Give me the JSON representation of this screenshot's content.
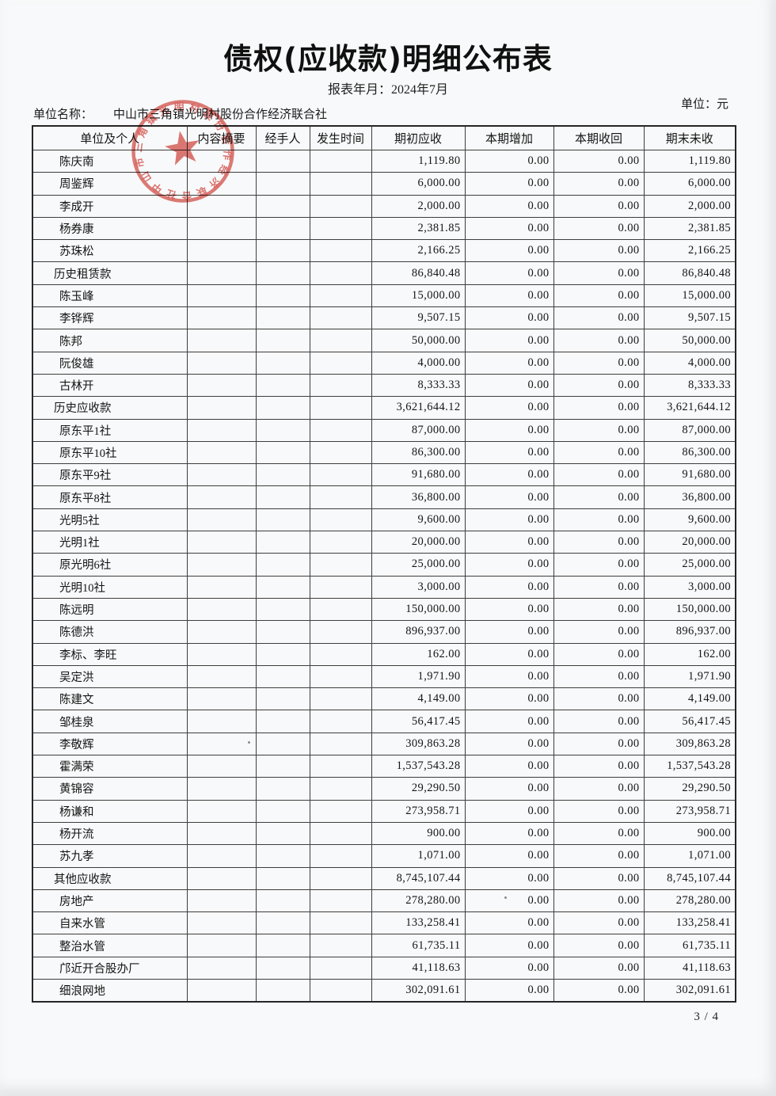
{
  "page": {
    "title": "债权(应收款)明细公布表",
    "report_period": "报表年月：2024年7月",
    "unit_name_label": "单位名称：",
    "unit_name_value": "中山市三角镇光明村股份合作经济联合社",
    "unit_label": "单位：元",
    "page_number": "3 / 4"
  },
  "stamp": {
    "text": "中山市三角镇光明村股份合作经济联合社",
    "shape": "round-seal-with-star",
    "color": "#d5443c"
  },
  "table": {
    "headers": [
      "单位及个人",
      "内容摘要",
      "经手人",
      "发生时间",
      "期初应收",
      "本期增加",
      "本期收回",
      "期末未收"
    ],
    "rows": [
      {
        "name": "陈庆南",
        "category": false,
        "opening": "1,119.80",
        "increase": "0.00",
        "received": "0.00",
        "closing": "1,119.80"
      },
      {
        "name": "周鉴辉",
        "category": false,
        "opening": "6,000.00",
        "increase": "0.00",
        "received": "0.00",
        "closing": "6,000.00"
      },
      {
        "name": "李成开",
        "category": false,
        "opening": "2,000.00",
        "increase": "0.00",
        "received": "0.00",
        "closing": "2,000.00"
      },
      {
        "name": "杨券康",
        "category": false,
        "opening": "2,381.85",
        "increase": "0.00",
        "received": "0.00",
        "closing": "2,381.85"
      },
      {
        "name": "苏珠松",
        "category": false,
        "opening": "2,166.25",
        "increase": "0.00",
        "received": "0.00",
        "closing": "2,166.25"
      },
      {
        "name": "历史租赁款",
        "category": true,
        "opening": "86,840.48",
        "increase": "0.00",
        "received": "0.00",
        "closing": "86,840.48"
      },
      {
        "name": "陈玉峰",
        "category": false,
        "opening": "15,000.00",
        "increase": "0.00",
        "received": "0.00",
        "closing": "15,000.00"
      },
      {
        "name": "李铧辉",
        "category": false,
        "opening": "9,507.15",
        "increase": "0.00",
        "received": "0.00",
        "closing": "9,507.15"
      },
      {
        "name": "陈邦",
        "category": false,
        "opening": "50,000.00",
        "increase": "0.00",
        "received": "0.00",
        "closing": "50,000.00"
      },
      {
        "name": "阮俊雄",
        "category": false,
        "opening": "4,000.00",
        "increase": "0.00",
        "received": "0.00",
        "closing": "4,000.00"
      },
      {
        "name": "古林开",
        "category": false,
        "opening": "8,333.33",
        "increase": "0.00",
        "received": "0.00",
        "closing": "8,333.33"
      },
      {
        "name": "历史应收款",
        "category": true,
        "opening": "3,621,644.12",
        "increase": "0.00",
        "received": "0.00",
        "closing": "3,621,644.12"
      },
      {
        "name": "原东平1社",
        "category": false,
        "opening": "87,000.00",
        "increase": "0.00",
        "received": "0.00",
        "closing": "87,000.00"
      },
      {
        "name": "原东平10社",
        "category": false,
        "opening": "86,300.00",
        "increase": "0.00",
        "received": "0.00",
        "closing": "86,300.00"
      },
      {
        "name": "原东平9社",
        "category": false,
        "opening": "91,680.00",
        "increase": "0.00",
        "received": "0.00",
        "closing": "91,680.00"
      },
      {
        "name": "原东平8社",
        "category": false,
        "opening": "36,800.00",
        "increase": "0.00",
        "received": "0.00",
        "closing": "36,800.00"
      },
      {
        "name": "光明5社",
        "category": false,
        "opening": "9,600.00",
        "increase": "0.00",
        "received": "0.00",
        "closing": "9,600.00"
      },
      {
        "name": "光明1社",
        "category": false,
        "opening": "20,000.00",
        "increase": "0.00",
        "received": "0.00",
        "closing": "20,000.00"
      },
      {
        "name": "原光明6社",
        "category": false,
        "opening": "25,000.00",
        "increase": "0.00",
        "received": "0.00",
        "closing": "25,000.00"
      },
      {
        "name": "光明10社",
        "category": false,
        "opening": "3,000.00",
        "increase": "0.00",
        "received": "0.00",
        "closing": "3,000.00"
      },
      {
        "name": "陈远明",
        "category": false,
        "opening": "150,000.00",
        "increase": "0.00",
        "received": "0.00",
        "closing": "150,000.00"
      },
      {
        "name": "陈德洪",
        "category": false,
        "opening": "896,937.00",
        "increase": "0.00",
        "received": "0.00",
        "closing": "896,937.00"
      },
      {
        "name": "李标、李旺",
        "category": false,
        "opening": "162.00",
        "increase": "0.00",
        "received": "0.00",
        "closing": "162.00"
      },
      {
        "name": "吴定洪",
        "category": false,
        "opening": "1,971.90",
        "increase": "0.00",
        "received": "0.00",
        "closing": "1,971.90"
      },
      {
        "name": "陈建文",
        "category": false,
        "opening": "4,149.00",
        "increase": "0.00",
        "received": "0.00",
        "closing": "4,149.00"
      },
      {
        "name": "邹桂泉",
        "category": false,
        "opening": "56,417.45",
        "increase": "0.00",
        "received": "0.00",
        "closing": "56,417.45"
      },
      {
        "name": "李敬辉",
        "category": false,
        "opening": "309,863.28",
        "increase": "0.00",
        "received": "0.00",
        "closing": "309,863.28"
      },
      {
        "name": "霍满荣",
        "category": false,
        "opening": "1,537,543.28",
        "increase": "0.00",
        "received": "0.00",
        "closing": "1,537,543.28"
      },
      {
        "name": "黄锦容",
        "category": false,
        "opening": "29,290.50",
        "increase": "0.00",
        "received": "0.00",
        "closing": "29,290.50"
      },
      {
        "name": "杨谦和",
        "category": false,
        "opening": "273,958.71",
        "increase": "0.00",
        "received": "0.00",
        "closing": "273,958.71"
      },
      {
        "name": "杨开流",
        "category": false,
        "opening": "900.00",
        "increase": "0.00",
        "received": "0.00",
        "closing": "900.00"
      },
      {
        "name": "苏九孝",
        "category": false,
        "opening": "1,071.00",
        "increase": "0.00",
        "received": "0.00",
        "closing": "1,071.00"
      },
      {
        "name": "其他应收款",
        "category": true,
        "opening": "8,745,107.44",
        "increase": "0.00",
        "received": "0.00",
        "closing": "8,745,107.44"
      },
      {
        "name": "房地产",
        "category": false,
        "opening": "278,280.00",
        "increase": "0.00",
        "received": "0.00",
        "closing": "278,280.00"
      },
      {
        "name": "自来水管",
        "category": false,
        "opening": "133,258.41",
        "increase": "0.00",
        "received": "0.00",
        "closing": "133,258.41"
      },
      {
        "name": "整治水管",
        "category": false,
        "opening": "61,735.11",
        "increase": "0.00",
        "received": "0.00",
        "closing": "61,735.11"
      },
      {
        "name": "邝近开合股办厂",
        "category": false,
        "opening": "41,118.63",
        "increase": "0.00",
        "received": "0.00",
        "closing": "41,118.63"
      },
      {
        "name": "细浪网地",
        "category": false,
        "opening": "302,091.61",
        "increase": "0.00",
        "received": "0.00",
        "closing": "302,091.61"
      }
    ]
  }
}
